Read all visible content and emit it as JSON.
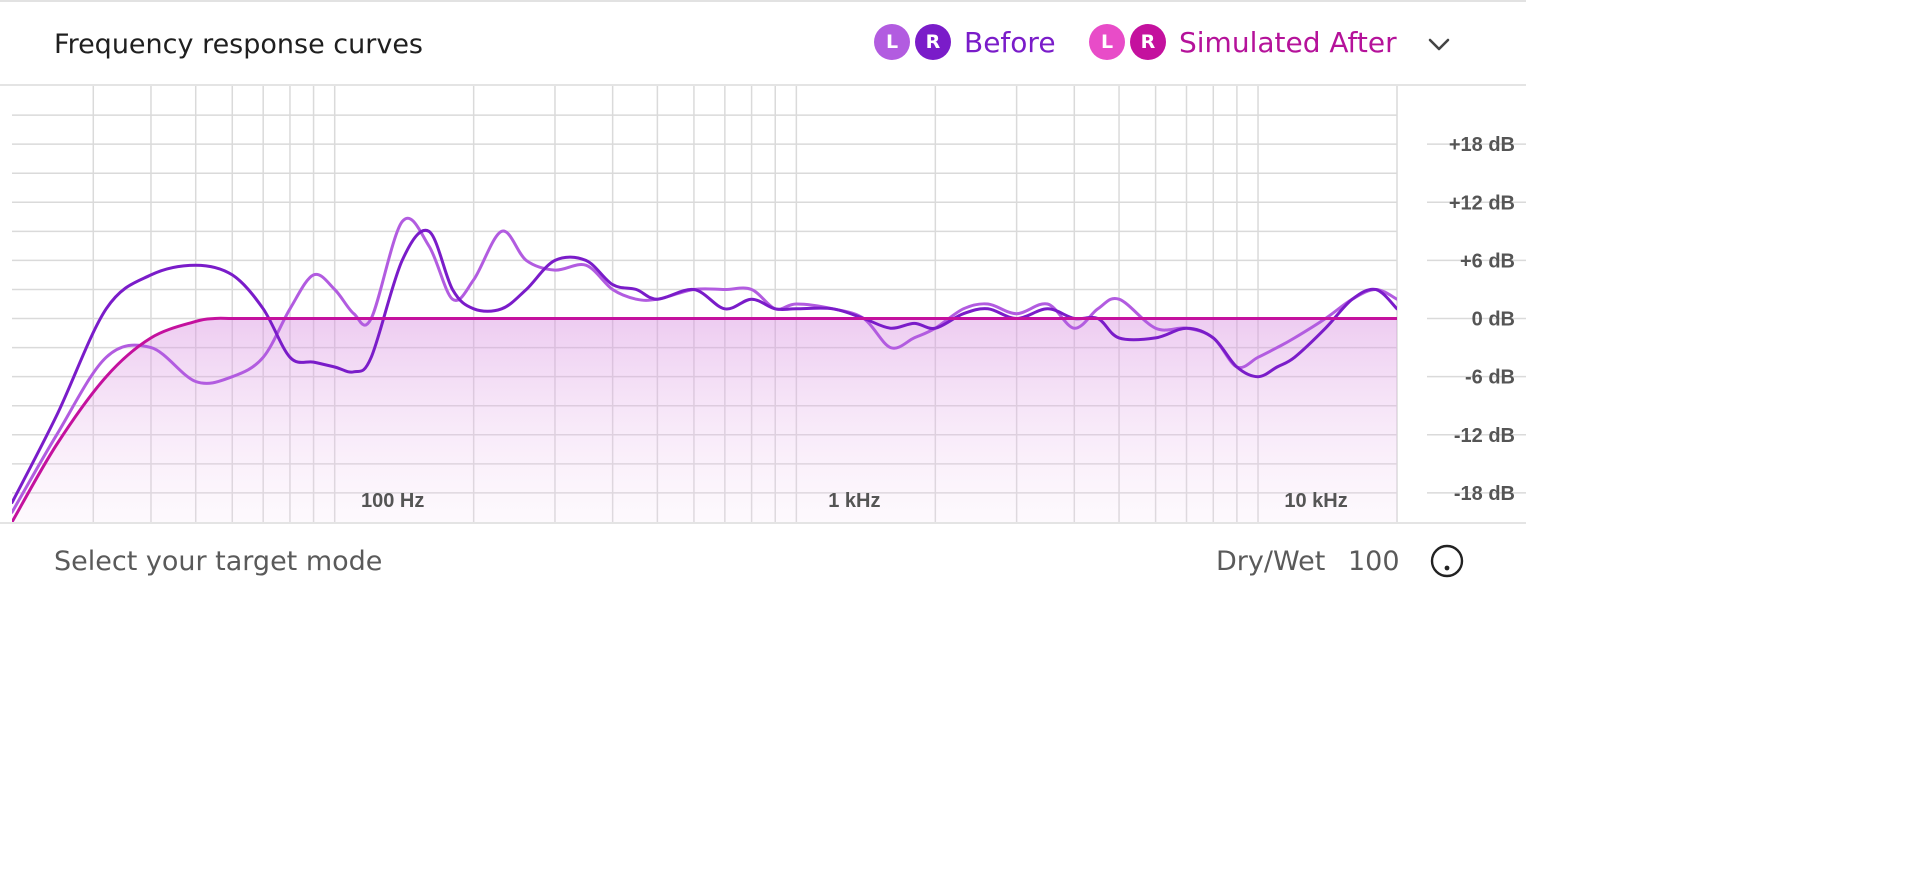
{
  "header": {
    "title": "Frequency response curves",
    "legend": [
      {
        "name": "Before",
        "left_label": "L",
        "right_label": "R",
        "left_color": "#b25ce0",
        "right_color": "#7a1cc9",
        "text_color": "#7a1cc9"
      },
      {
        "name": "Simulated After",
        "left_label": "L",
        "right_label": "R",
        "left_color": "#e84cc8",
        "right_color": "#c4119e",
        "text_color": "#b5129a"
      }
    ],
    "menu_icon": "chevron-down-icon"
  },
  "chart_data": {
    "type": "line",
    "x_scale": "log",
    "x_ticks": [
      {
        "value": 100,
        "label": "100 Hz"
      },
      {
        "value": 1000,
        "label": "1 kHz"
      },
      {
        "value": 10000,
        "label": "10 kHz"
      }
    ],
    "y_ticks": [
      {
        "value": 18,
        "label": "+18 dB"
      },
      {
        "value": 12,
        "label": "+12 dB"
      },
      {
        "value": 6,
        "label": "+6 dB"
      },
      {
        "value": 0,
        "label": "0 dB"
      },
      {
        "value": -6,
        "label": "-6 dB"
      },
      {
        "value": -12,
        "label": "-12 dB"
      },
      {
        "value": -18,
        "label": "-18 dB"
      }
    ],
    "xlim": [
      20,
      20000
    ],
    "ylim": [
      -21,
      24
    ],
    "grid": true,
    "series": [
      {
        "name": "Before L",
        "color": "#b25ce0",
        "fill": false,
        "x": [
          20,
          25,
          32,
          40,
          50,
          60,
          70,
          80,
          90,
          100,
          110,
          120,
          140,
          160,
          180,
          200,
          230,
          260,
          300,
          350,
          400,
          450,
          500,
          600,
          700,
          800,
          900,
          1000,
          1200,
          1400,
          1600,
          1800,
          2000,
          2300,
          2600,
          3000,
          3500,
          4000,
          4500,
          5000,
          6000,
          7000,
          8000,
          9000,
          10000,
          11000,
          12000,
          14000,
          16000,
          18000,
          20000
        ],
        "y": [
          -20,
          -12,
          -4,
          -3,
          -6.5,
          -6,
          -4,
          1,
          4.5,
          3,
          0.5,
          0,
          10,
          7.5,
          2,
          4,
          9,
          6,
          5,
          5.5,
          3,
          2,
          2,
          3,
          3,
          3,
          1,
          1.5,
          1,
          0,
          -3,
          -2,
          -1,
          1,
          1.5,
          0.5,
          1.5,
          -1,
          1,
          2,
          -1,
          -1,
          -2,
          -5,
          -4,
          -3,
          -2,
          0,
          2,
          3,
          2
        ]
      },
      {
        "name": "Before R",
        "color": "#7a1cc9",
        "fill": false,
        "x": [
          20,
          25,
          32,
          40,
          50,
          60,
          70,
          80,
          90,
          100,
          110,
          120,
          140,
          160,
          180,
          200,
          230,
          260,
          300,
          350,
          400,
          450,
          500,
          600,
          700,
          800,
          900,
          1000,
          1200,
          1400,
          1600,
          1800,
          2000,
          2300,
          2600,
          3000,
          3500,
          4000,
          4500,
          5000,
          6000,
          7000,
          8000,
          9000,
          10000,
          11000,
          12000,
          14000,
          16000,
          18000,
          20000
        ],
        "y": [
          -19,
          -10,
          1,
          4.5,
          5.5,
          4.5,
          1,
          -4,
          -4.5,
          -5,
          -5.5,
          -4,
          6,
          9,
          3,
          1,
          1,
          3,
          6,
          6,
          3.5,
          3,
          2,
          3,
          1,
          2,
          1,
          1,
          1,
          0,
          -1,
          -0.5,
          -1,
          0.5,
          1,
          0,
          1,
          0,
          0,
          -2,
          -2,
          -1,
          -2,
          -5,
          -6,
          -5,
          -4,
          -1,
          2,
          3,
          1
        ]
      },
      {
        "name": "Simulated After",
        "color": "#c4119e",
        "fill": true,
        "x": [
          20,
          25,
          32,
          40,
          50,
          55,
          60,
          70,
          80,
          100,
          200,
          500,
          1000,
          5000,
          10000,
          20000
        ],
        "y": [
          -21,
          -13,
          -6,
          -2,
          -0.3,
          0,
          0,
          0,
          0,
          0,
          0,
          0,
          0,
          0,
          0,
          0
        ]
      }
    ]
  },
  "footer": {
    "hint": "Select your target mode",
    "drywet_label": "Dry/Wet",
    "drywet_value": "100",
    "knob_icon": "knob-icon"
  }
}
